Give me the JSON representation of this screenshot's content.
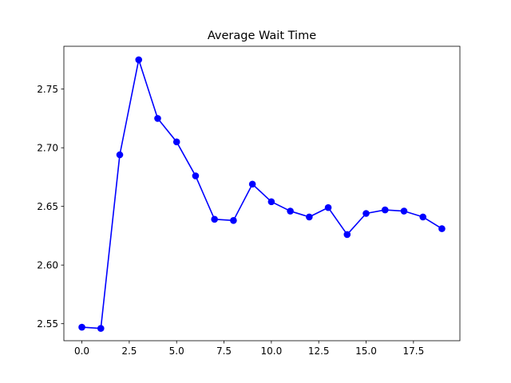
{
  "chart_data": {
    "type": "line",
    "title": "Average Wait Time",
    "xlabel": "",
    "ylabel": "",
    "x": [
      0,
      1,
      2,
      3,
      4,
      5,
      6,
      7,
      8,
      9,
      10,
      11,
      12,
      13,
      14,
      15,
      16,
      17,
      18,
      19
    ],
    "series": [
      {
        "values": [
          2.547,
          2.546,
          2.694,
          2.775,
          2.725,
          2.705,
          2.676,
          2.639,
          2.638,
          2.669,
          2.654,
          2.646,
          2.641,
          2.649,
          2.626,
          2.644,
          2.647,
          2.646,
          2.641,
          2.631
        ],
        "color": "#0000ff",
        "marker": "circle"
      }
    ],
    "xlim": [
      -0.95,
      19.95
    ],
    "ylim": [
      2.5355,
      2.7865
    ],
    "xticks": [
      0.0,
      2.5,
      5.0,
      7.5,
      10.0,
      12.5,
      15.0,
      17.5
    ],
    "xtick_labels": [
      "0.0",
      "2.5",
      "5.0",
      "7.5",
      "10.0",
      "12.5",
      "15.0",
      "17.5"
    ],
    "yticks": [
      2.55,
      2.6,
      2.65,
      2.7,
      2.75
    ],
    "ytick_labels": [
      "2.55",
      "2.60",
      "2.65",
      "2.70",
      "2.75"
    ],
    "grid": false,
    "legend": "none"
  }
}
